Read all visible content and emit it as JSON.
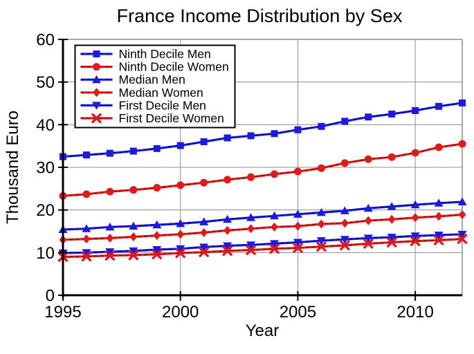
{
  "chart_data": {
    "type": "line",
    "title": "France Income Distribution by Sex",
    "xlabel": "Year",
    "ylabel": "Thousand Euro",
    "xlim": [
      1995,
      2012
    ],
    "ylim": [
      0,
      60
    ],
    "x_ticks": [
      1995,
      2000,
      2005,
      2010
    ],
    "y_ticks": [
      0,
      10,
      20,
      30,
      40,
      50,
      60
    ],
    "grid": true,
    "legend_position": "top-left",
    "x": [
      1995,
      1996,
      1997,
      1998,
      1999,
      2000,
      2001,
      2002,
      2003,
      2004,
      2005,
      2006,
      2007,
      2008,
      2009,
      2010,
      2011,
      2012
    ],
    "series": [
      {
        "name": "Ninth Decile Men",
        "marker": "square",
        "color": "#1a1ae0",
        "dash_color": "#000080",
        "values": [
          32.5,
          32.9,
          33.3,
          33.8,
          34.4,
          35.1,
          36.0,
          36.9,
          37.4,
          37.9,
          38.8,
          39.6,
          40.8,
          41.8,
          42.5,
          43.3,
          44.3,
          45.1
        ]
      },
      {
        "name": "Ninth Decile Women",
        "marker": "circle",
        "color": "#e01a1a",
        "dash_color": "#8b0000",
        "values": [
          23.3,
          23.7,
          24.3,
          24.7,
          25.2,
          25.8,
          26.4,
          27.1,
          27.7,
          28.4,
          29.0,
          29.8,
          31.0,
          31.9,
          32.4,
          33.4,
          34.7,
          35.5
        ]
      },
      {
        "name": "Median Men",
        "marker": "triangle-up",
        "color": "#1a1ae0",
        "dash_color": "#000080",
        "values": [
          15.4,
          15.6,
          16.0,
          16.2,
          16.5,
          16.8,
          17.2,
          17.8,
          18.2,
          18.6,
          19.0,
          19.4,
          19.8,
          20.4,
          20.8,
          21.2,
          21.6,
          21.9
        ]
      },
      {
        "name": "Median Women",
        "marker": "diamond",
        "color": "#e01a1a",
        "dash_color": "#8b0000",
        "values": [
          13.0,
          13.2,
          13.4,
          13.7,
          14.0,
          14.3,
          14.7,
          15.2,
          15.6,
          16.0,
          16.2,
          16.7,
          16.9,
          17.5,
          17.8,
          18.2,
          18.5,
          18.9
        ]
      },
      {
        "name": "First Decile Men",
        "marker": "triangle-down",
        "color": "#1a1ae0",
        "dash_color": "#000080",
        "values": [
          9.9,
          10.0,
          10.2,
          10.4,
          10.7,
          10.9,
          11.3,
          11.6,
          11.8,
          12.1,
          12.4,
          12.8,
          13.1,
          13.4,
          13.6,
          13.9,
          14.1,
          14.3
        ]
      },
      {
        "name": "First Decile Women",
        "marker": "x",
        "color": "#e01a1a",
        "dash_color": "#8b0000",
        "values": [
          9.0,
          9.1,
          9.3,
          9.4,
          9.6,
          9.9,
          10.1,
          10.4,
          10.6,
          10.9,
          11.1,
          11.4,
          11.7,
          12.1,
          12.4,
          12.7,
          12.9,
          13.2
        ]
      }
    ],
    "colors": {
      "men_line": "#1a1ae0",
      "women_line": "#e01a1a",
      "grid": "#8c8c8c",
      "axis": "#000000",
      "background": "#ffffff",
      "legend_background": "#ffffff",
      "legend_border": "#000000"
    }
  }
}
